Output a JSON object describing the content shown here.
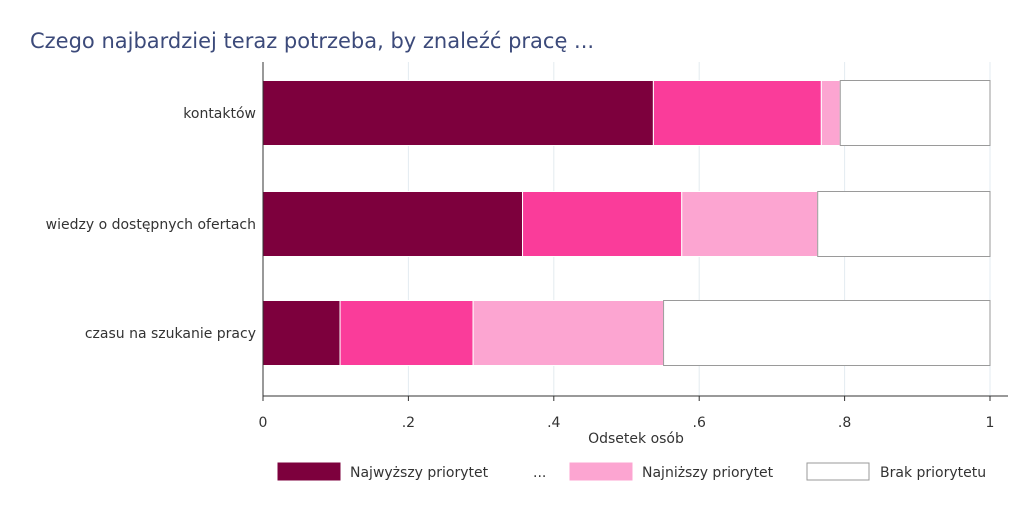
{
  "chart_data": {
    "type": "bar",
    "orientation": "horizontal",
    "stacked": true,
    "title": "Czego najbardziej teraz potrzeba, by znaleźć pracę ...",
    "xlabel": "Odsetek osób",
    "ylabel": "",
    "xlim": [
      0,
      1
    ],
    "x_ticks": [
      0,
      0.2,
      0.4,
      0.6,
      0.8,
      1
    ],
    "x_tick_labels": [
      "0",
      ".2",
      ".4",
      ".6",
      ".8",
      "1"
    ],
    "grid": true,
    "legend_position": "bottom",
    "categories": [
      "kontaktów",
      "wiedzy o dostępnych ofertach",
      "czasu na szukanie pracy"
    ],
    "series": [
      {
        "name": "Najwyższy priorytet",
        "color": "#7d003d",
        "values": [
          0.537,
          0.357,
          0.106
        ]
      },
      {
        "name": "",
        "color": "#fa3c9a",
        "values": [
          0.231,
          0.219,
          0.183
        ]
      },
      {
        "name": "Najniższy priorytet",
        "color": "#fca5d1",
        "values": [
          0.026,
          0.187,
          0.262
        ]
      },
      {
        "name": "Brak priorytetu",
        "color": "#ffffff",
        "values": [
          0.206,
          0.237,
          0.449
        ]
      }
    ],
    "legend_ellipsis": "..."
  }
}
